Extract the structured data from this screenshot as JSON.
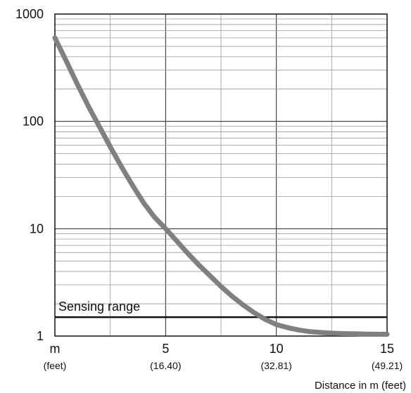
{
  "chart_data": {
    "type": "line",
    "xlabel": "Distance in m (feet)",
    "x_unit_label": "m",
    "x_unit_sublabel": "(feet)",
    "xlim": [
      0,
      15
    ],
    "ylim": [
      1,
      1000
    ],
    "y_scale": "log",
    "grid": true,
    "x_ticks": [
      {
        "value": 5,
        "label": "5",
        "sublabel": "(16.40)"
      },
      {
        "value": 10,
        "label": "10",
        "sublabel": "(32.81)"
      },
      {
        "value": 15,
        "label": "15",
        "sublabel": "(49.21)"
      }
    ],
    "y_ticks": [
      {
        "value": 1,
        "label": "1"
      },
      {
        "value": 10,
        "label": "10"
      },
      {
        "value": 100,
        "label": "100"
      },
      {
        "value": 1000,
        "label": "1000"
      }
    ],
    "sensing_range": {
      "label": "Sensing range",
      "y": 1.5
    },
    "series": [
      {
        "color": "#808080",
        "x": [
          0,
          0.5,
          1,
          1.5,
          2,
          2.5,
          3,
          3.5,
          4,
          4.5,
          5,
          5.5,
          6,
          6.5,
          7,
          7.5,
          8,
          8.5,
          9,
          9.5,
          10,
          10.5,
          11,
          11.5,
          12,
          12.5,
          13,
          13.5,
          14,
          14.5,
          15
        ],
        "y": [
          600,
          370,
          225,
          140,
          90,
          58,
          38,
          25.5,
          17.5,
          12.8,
          10,
          7.7,
          5.9,
          4.6,
          3.65,
          2.9,
          2.35,
          1.95,
          1.65,
          1.43,
          1.28,
          1.2,
          1.14,
          1.1,
          1.08,
          1.065,
          1.055,
          1.05,
          1.045,
          1.04,
          1.04
        ]
      }
    ]
  }
}
